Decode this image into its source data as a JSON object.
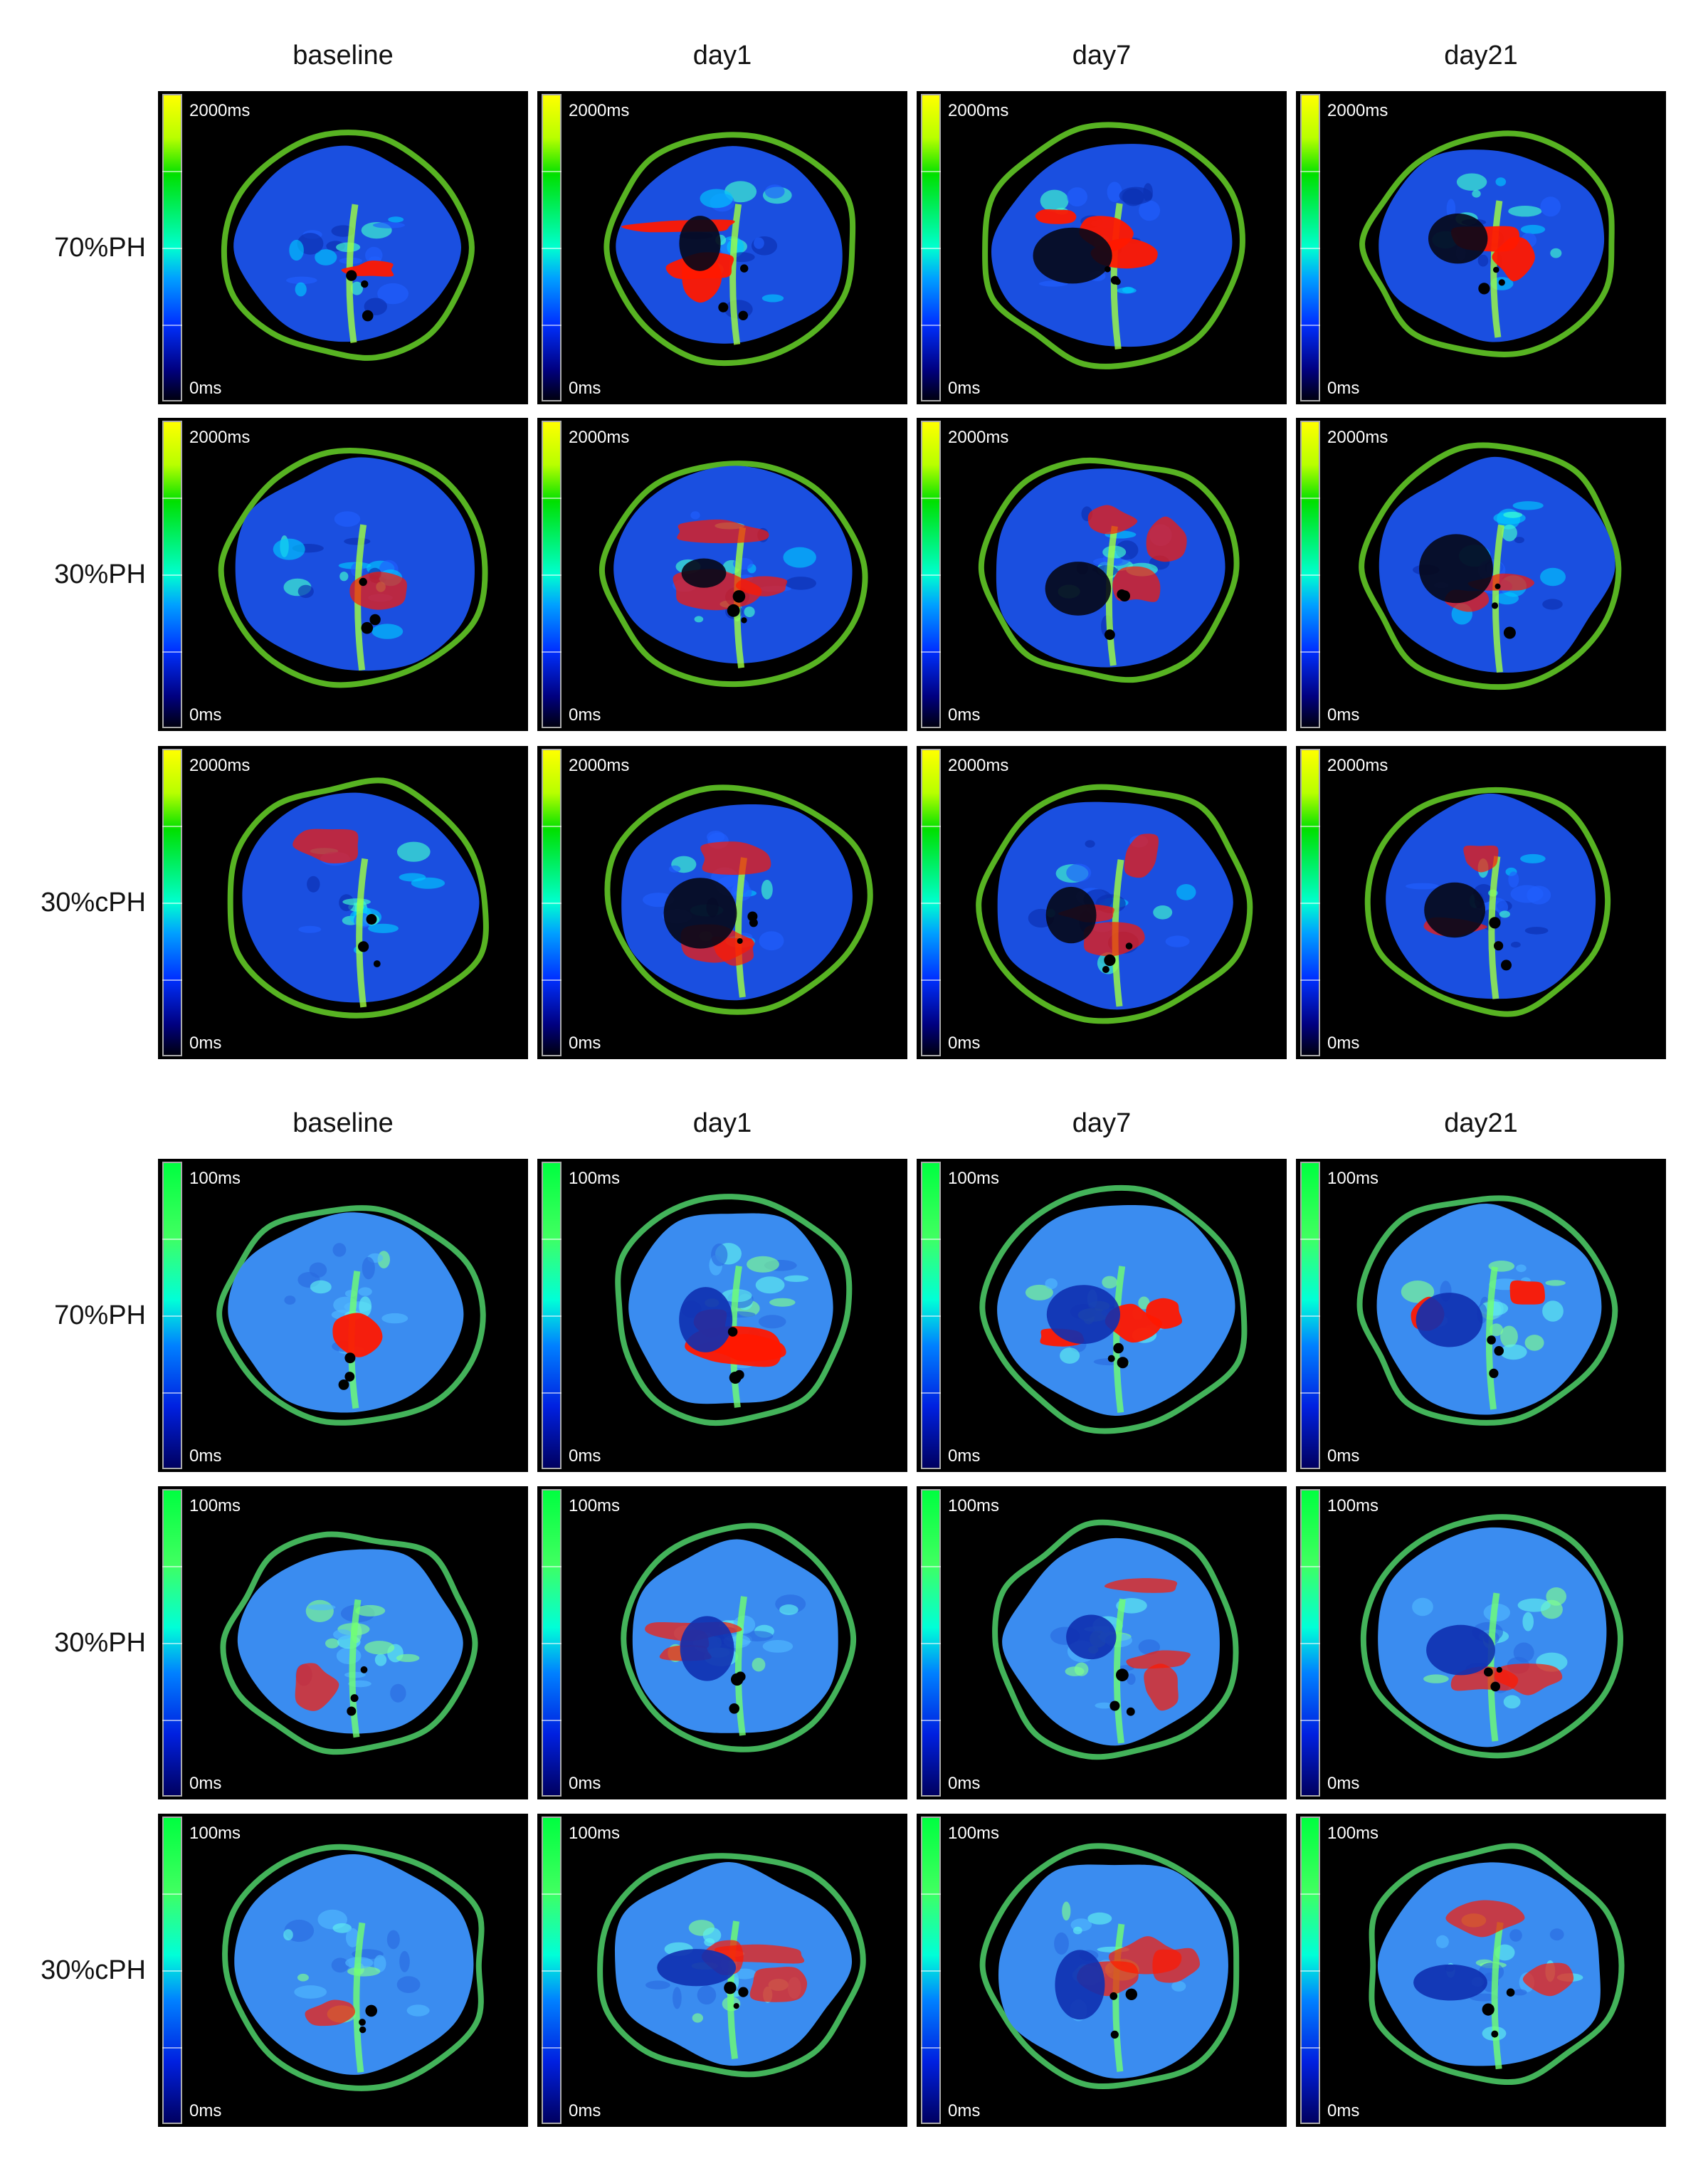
{
  "sections": [
    {
      "map": "t1",
      "columns": [
        "baseline",
        "day1",
        "day7",
        "day21"
      ],
      "rows": [
        {
          "label": "70%PH",
          "panels": [
            {
              "max": "2000ms",
              "min": "0ms"
            },
            {
              "max": "2000ms",
              "min": "0ms"
            },
            {
              "max": "2000ms",
              "min": "0ms"
            },
            {
              "max": "2000ms",
              "min": "0ms"
            }
          ]
        },
        {
          "label": "30%PH",
          "panels": [
            {
              "max": "2000ms",
              "min": "0ms"
            },
            {
              "max": "2000ms",
              "min": "0ms"
            },
            {
              "max": "2000ms",
              "min": "0ms"
            },
            {
              "max": "2000ms",
              "min": "0ms"
            }
          ]
        },
        {
          "label": "30%cPH",
          "panels": [
            {
              "max": "2000ms",
              "min": "0ms"
            },
            {
              "max": "2000ms",
              "min": "0ms"
            },
            {
              "max": "2000ms",
              "min": "0ms"
            },
            {
              "max": "2000ms",
              "min": "0ms"
            }
          ]
        }
      ]
    },
    {
      "map": "t2",
      "columns": [
        "baseline",
        "day1",
        "day7",
        "day21"
      ],
      "rows": [
        {
          "label": "70%PH",
          "panels": [
            {
              "max": "100ms",
              "min": "0ms"
            },
            {
              "max": "100ms",
              "min": "0ms"
            },
            {
              "max": "100ms",
              "min": "0ms"
            },
            {
              "max": "100ms",
              "min": "0ms"
            }
          ]
        },
        {
          "label": "30%PH",
          "panels": [
            {
              "max": "100ms",
              "min": "0ms"
            },
            {
              "max": "100ms",
              "min": "0ms"
            },
            {
              "max": "100ms",
              "min": "0ms"
            },
            {
              "max": "100ms",
              "min": "0ms"
            }
          ]
        },
        {
          "label": "30%cPH",
          "panels": [
            {
              "max": "100ms",
              "min": "0ms"
            },
            {
              "max": "100ms",
              "min": "0ms"
            },
            {
              "max": "100ms",
              "min": "0ms"
            },
            {
              "max": "100ms",
              "min": "0ms"
            }
          ]
        }
      ]
    }
  ]
}
